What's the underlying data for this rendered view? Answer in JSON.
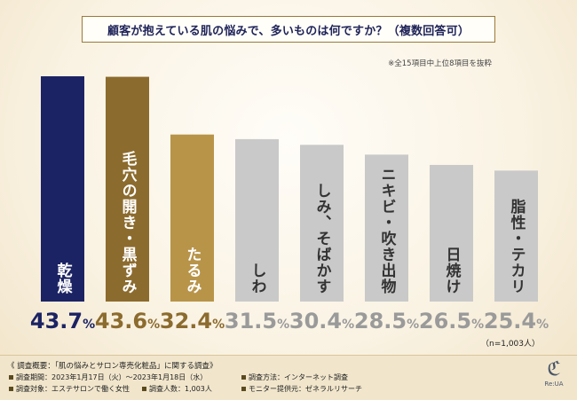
{
  "title": "顧客が抱えている肌の悩みで、多いものは何ですか？（複数回答可）",
  "note": "※全15項目中上位8項目を抜粋",
  "sample_note": "（n=1,003人）",
  "colors": {
    "navy": "#1c2364",
    "gold": "#8c6b2e",
    "tan": "#b89449",
    "gray": "#c9c9c9",
    "value_dark": "#1c2364",
    "value_gold": "#8c6b2e",
    "value_gray": "#9a9a9a"
  },
  "chart_data": {
    "type": "bar",
    "title": "顧客が抱えている肌の悩みで、多いものは何ですか？（複数回答可）",
    "categories": [
      "乾燥",
      "毛穴の開き・黒ずみ",
      "たるみ",
      "しわ",
      "しみ、そばかす",
      "ニキビ・吹き出物",
      "日焼け",
      "脂性・テカリ"
    ],
    "values": [
      43.7,
      43.6,
      32.4,
      31.5,
      30.4,
      28.5,
      26.5,
      25.4
    ],
    "value_labels": [
      "43.7%",
      "43.6%",
      "32.4%",
      "31.5%",
      "30.4%",
      "28.5%",
      "26.5%",
      "25.4%"
    ],
    "unit": "%",
    "ylim": [
      0,
      50
    ],
    "bar_color_keys": [
      "navy",
      "gold",
      "tan",
      "gray",
      "gray",
      "gray",
      "gray",
      "gray"
    ],
    "label_text_colors": [
      "#ffffff",
      "#ffffff",
      "#ffffff",
      "#333333",
      "#333333",
      "#333333",
      "#333333",
      "#333333"
    ],
    "value_color_keys": [
      "value_dark",
      "value_gold",
      "value_gold",
      "value_gray",
      "value_gray",
      "value_gray",
      "value_gray",
      "value_gray"
    ]
  },
  "footer": {
    "title": "《 調査概要：「肌の悩みとサロン専売化粧品」に関する調査》",
    "period": "調査期間：2023年1月17日（火）〜2023年1月18日（水）",
    "method": "調査方法：インターネット調査",
    "subject": "調査対象：エステサロンで働く女性",
    "count": "調査人数：1,003人",
    "provider": "モニター提供元：ゼネラルリサーチ"
  },
  "logo": {
    "text": "Re:UA"
  }
}
